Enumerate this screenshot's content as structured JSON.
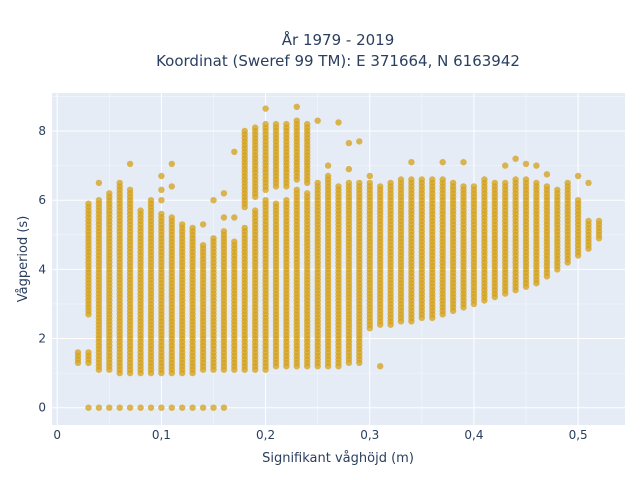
{
  "chart_data": {
    "type": "scatter",
    "title": "År 1979 - 2019",
    "subtitle": "Koordinat (Sweref 99 TM): E 371664, N 6163942",
    "xlabel": "Signifikant våghöjd (m)",
    "ylabel": "Vågperiod (s)",
    "xlim": [
      -0.005,
      0.545
    ],
    "ylim": [
      -0.5,
      9.1
    ],
    "x_ticks": [
      0,
      0.1,
      0.2,
      0.3,
      0.4,
      0.5
    ],
    "x_tick_labels": [
      "0",
      "0,1",
      "0,2",
      "0,3",
      "0,4",
      "0,5"
    ],
    "y_ticks": [
      0,
      2,
      4,
      6,
      8
    ],
    "y_tick_labels": [
      "0",
      "2",
      "4",
      "6",
      "8"
    ],
    "grid": true,
    "colors": {
      "point": "#d4a017",
      "plot_bg": "#e5ecf6",
      "grid": "#ffffff",
      "text": "#2a3f5f"
    },
    "x_step": 0.01,
    "columns": [
      {
        "x": 0.02,
        "ranges": [
          [
            1.3,
            1.6
          ]
        ]
      },
      {
        "x": 0.03,
        "ranges": [
          [
            0,
            0
          ],
          [
            1.3,
            1.6
          ],
          [
            2.7,
            5.9
          ]
        ]
      },
      {
        "x": 0.04,
        "ranges": [
          [
            0,
            0
          ],
          [
            1.1,
            6.0
          ]
        ],
        "outliers": [
          6.5
        ]
      },
      {
        "x": 0.05,
        "ranges": [
          [
            0,
            0
          ],
          [
            1.1,
            6.2
          ]
        ]
      },
      {
        "x": 0.06,
        "ranges": [
          [
            0,
            0
          ],
          [
            1.0,
            6.5
          ]
        ]
      },
      {
        "x": 0.07,
        "ranges": [
          [
            0,
            0
          ],
          [
            1.0,
            6.3
          ]
        ],
        "outliers": [
          7.05
        ]
      },
      {
        "x": 0.08,
        "ranges": [
          [
            0,
            0
          ],
          [
            1.0,
            5.7
          ]
        ]
      },
      {
        "x": 0.09,
        "ranges": [
          [
            0,
            0
          ],
          [
            1.0,
            6.0
          ]
        ]
      },
      {
        "x": 0.1,
        "ranges": [
          [
            0,
            0
          ],
          [
            1.0,
            5.6
          ]
        ],
        "outliers": [
          6.0,
          6.3,
          6.7
        ]
      },
      {
        "x": 0.11,
        "ranges": [
          [
            0,
            0
          ],
          [
            1.0,
            5.5
          ]
        ],
        "outliers": [
          6.4,
          7.05
        ]
      },
      {
        "x": 0.12,
        "ranges": [
          [
            0,
            0
          ],
          [
            1.0,
            5.3
          ]
        ]
      },
      {
        "x": 0.13,
        "ranges": [
          [
            0,
            0
          ],
          [
            1.0,
            5.2
          ]
        ]
      },
      {
        "x": 0.14,
        "ranges": [
          [
            0,
            0
          ],
          [
            1.1,
            4.7
          ]
        ],
        "outliers": [
          5.3
        ]
      },
      {
        "x": 0.15,
        "ranges": [
          [
            0,
            0
          ],
          [
            1.1,
            4.9
          ]
        ],
        "outliers": [
          6.0
        ]
      },
      {
        "x": 0.16,
        "ranges": [
          [
            0,
            0
          ],
          [
            1.1,
            5.1
          ]
        ],
        "outliers": [
          5.5,
          6.2
        ]
      },
      {
        "x": 0.17,
        "ranges": [
          [
            1.1,
            4.8
          ]
        ],
        "outliers": [
          5.5,
          7.4
        ]
      },
      {
        "x": 0.18,
        "ranges": [
          [
            1.1,
            5.2
          ],
          [
            5.8,
            8.0
          ]
        ]
      },
      {
        "x": 0.19,
        "ranges": [
          [
            1.1,
            5.7
          ],
          [
            6.1,
            8.1
          ]
        ]
      },
      {
        "x": 0.2,
        "ranges": [
          [
            1.1,
            6.0
          ],
          [
            6.3,
            8.2
          ]
        ],
        "outliers": [
          8.65
        ]
      },
      {
        "x": 0.21,
        "ranges": [
          [
            1.2,
            5.9
          ],
          [
            6.4,
            8.2
          ]
        ]
      },
      {
        "x": 0.22,
        "ranges": [
          [
            1.2,
            6.0
          ],
          [
            6.4,
            8.2
          ]
        ]
      },
      {
        "x": 0.23,
        "ranges": [
          [
            1.2,
            6.3
          ],
          [
            6.6,
            8.3
          ]
        ],
        "outliers": [
          8.7
        ]
      },
      {
        "x": 0.24,
        "ranges": [
          [
            1.2,
            6.2
          ],
          [
            6.5,
            8.2
          ]
        ]
      },
      {
        "x": 0.25,
        "ranges": [
          [
            1.2,
            6.5
          ]
        ],
        "outliers": [
          8.3
        ]
      },
      {
        "x": 0.26,
        "ranges": [
          [
            1.2,
            6.7
          ]
        ],
        "outliers": [
          7.0
        ]
      },
      {
        "x": 0.27,
        "ranges": [
          [
            1.2,
            6.4
          ]
        ],
        "outliers": [
          8.25
        ]
      },
      {
        "x": 0.28,
        "ranges": [
          [
            1.3,
            6.5
          ]
        ],
        "outliers": [
          6.9,
          7.65
        ]
      },
      {
        "x": 0.29,
        "ranges": [
          [
            1.3,
            6.5
          ]
        ],
        "outliers": [
          7.7
        ]
      },
      {
        "x": 0.3,
        "ranges": [
          [
            2.3,
            6.5
          ]
        ],
        "outliers": [
          6.7
        ]
      },
      {
        "x": 0.31,
        "ranges": [
          [
            2.4,
            6.4
          ]
        ],
        "outliers": [
          1.2
        ]
      },
      {
        "x": 0.32,
        "ranges": [
          [
            2.4,
            6.5
          ]
        ]
      },
      {
        "x": 0.33,
        "ranges": [
          [
            2.5,
            6.6
          ]
        ]
      },
      {
        "x": 0.34,
        "ranges": [
          [
            2.5,
            6.6
          ]
        ],
        "outliers": [
          7.1
        ]
      },
      {
        "x": 0.35,
        "ranges": [
          [
            2.6,
            6.6
          ]
        ]
      },
      {
        "x": 0.36,
        "ranges": [
          [
            2.6,
            6.6
          ]
        ]
      },
      {
        "x": 0.37,
        "ranges": [
          [
            2.7,
            6.6
          ]
        ],
        "outliers": [
          7.1
        ]
      },
      {
        "x": 0.38,
        "ranges": [
          [
            2.8,
            6.5
          ]
        ]
      },
      {
        "x": 0.39,
        "ranges": [
          [
            2.9,
            6.4
          ]
        ],
        "outliers": [
          7.1
        ]
      },
      {
        "x": 0.4,
        "ranges": [
          [
            3.0,
            6.4
          ]
        ]
      },
      {
        "x": 0.41,
        "ranges": [
          [
            3.1,
            6.5
          ]
        ],
        "outliers": [
          6.6
        ]
      },
      {
        "x": 0.42,
        "ranges": [
          [
            3.2,
            6.5
          ]
        ]
      },
      {
        "x": 0.43,
        "ranges": [
          [
            3.3,
            6.5
          ]
        ],
        "outliers": [
          7.0
        ]
      },
      {
        "x": 0.44,
        "ranges": [
          [
            3.4,
            6.6
          ]
        ],
        "outliers": [
          7.2
        ]
      },
      {
        "x": 0.45,
        "ranges": [
          [
            3.5,
            6.6
          ]
        ],
        "outliers": [
          7.05
        ]
      },
      {
        "x": 0.46,
        "ranges": [
          [
            3.6,
            6.5
          ]
        ],
        "outliers": [
          7.0
        ]
      },
      {
        "x": 0.47,
        "ranges": [
          [
            3.8,
            6.4
          ]
        ],
        "outliers": [
          6.75
        ]
      },
      {
        "x": 0.48,
        "ranges": [
          [
            4.0,
            6.3
          ]
        ]
      },
      {
        "x": 0.49,
        "ranges": [
          [
            4.2,
            6.5
          ]
        ]
      },
      {
        "x": 0.5,
        "ranges": [
          [
            4.4,
            6.0
          ]
        ],
        "outliers": [
          6.7
        ]
      },
      {
        "x": 0.51,
        "ranges": [
          [
            4.6,
            5.4
          ]
        ],
        "outliers": [
          6.5
        ]
      },
      {
        "x": 0.52,
        "ranges": [
          [
            4.9,
            5.4
          ]
        ]
      }
    ]
  }
}
